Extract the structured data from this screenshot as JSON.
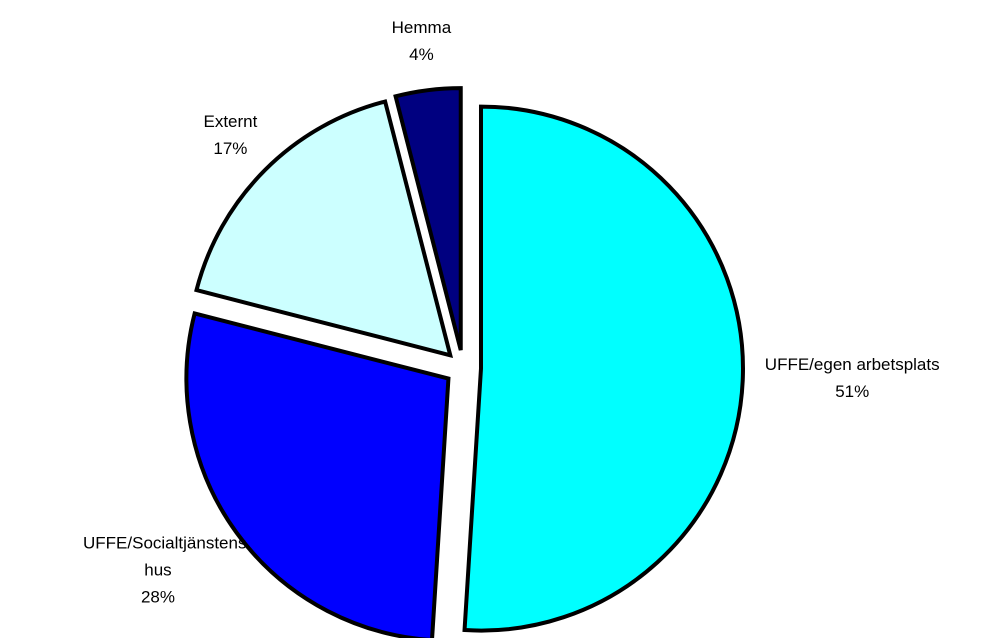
{
  "chart_data": {
    "type": "pie",
    "categories": [
      "UFFE/egen arbetsplats",
      "UFFE/Socialtjänstens hus",
      "Externt",
      "Hemma"
    ],
    "values": [
      51,
      28,
      17,
      4
    ],
    "value_labels": [
      "51%",
      "28%",
      "17%",
      "4%"
    ],
    "colors": [
      "#00ffff",
      "#0000ff",
      "#ccffff",
      "#000080"
    ]
  }
}
